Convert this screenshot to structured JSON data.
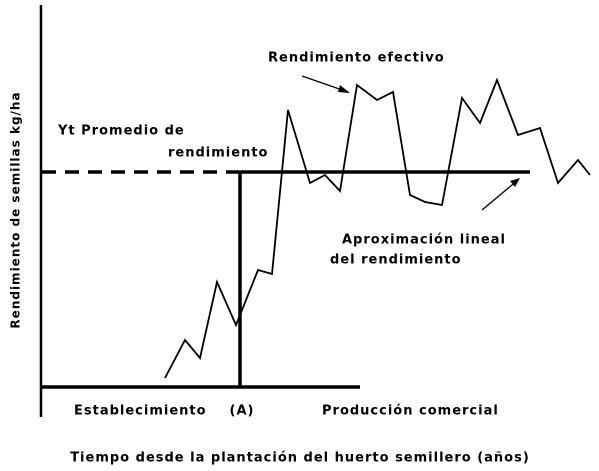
{
  "chart_data": {
    "type": "line",
    "xlabel": "Tiempo desde la plantación del huerto semillero (años)",
    "ylabel": "Rendimiento de semillas kg/ha",
    "xlim": [
      0,
      550
    ],
    "ylim": [
      0,
      380
    ],
    "series": [
      {
        "name": "Rendimiento efectivo",
        "color": "#000000",
        "x": [
          125,
          145,
          160,
          177,
          196,
          218,
          232,
          248,
          270,
          285,
          300,
          317,
          337,
          353,
          370,
          385,
          402,
          422,
          440,
          457,
          478,
          500,
          518,
          538,
          550
        ],
        "values": [
          9,
          47,
          29,
          105,
          62,
          117,
          113,
          277,
          204,
          212,
          196,
          302,
          287,
          295,
          192,
          185,
          182,
          289,
          264,
          307,
          252,
          259,
          204,
          227,
          212
        ]
      }
    ],
    "mean_yield": {
      "label_line1": "Yt Promedio de",
      "label_line2": "rendimiento",
      "value": 215,
      "dash_end_x": 200
    },
    "linear_approximation": {
      "label_line1": "Aproximación lineal",
      "label_line2": "del rendimiento",
      "end_x": 490
    },
    "establishment_x": 200,
    "phases": [
      "Establecimiento",
      "(A)",
      "Producción comercial"
    ]
  }
}
